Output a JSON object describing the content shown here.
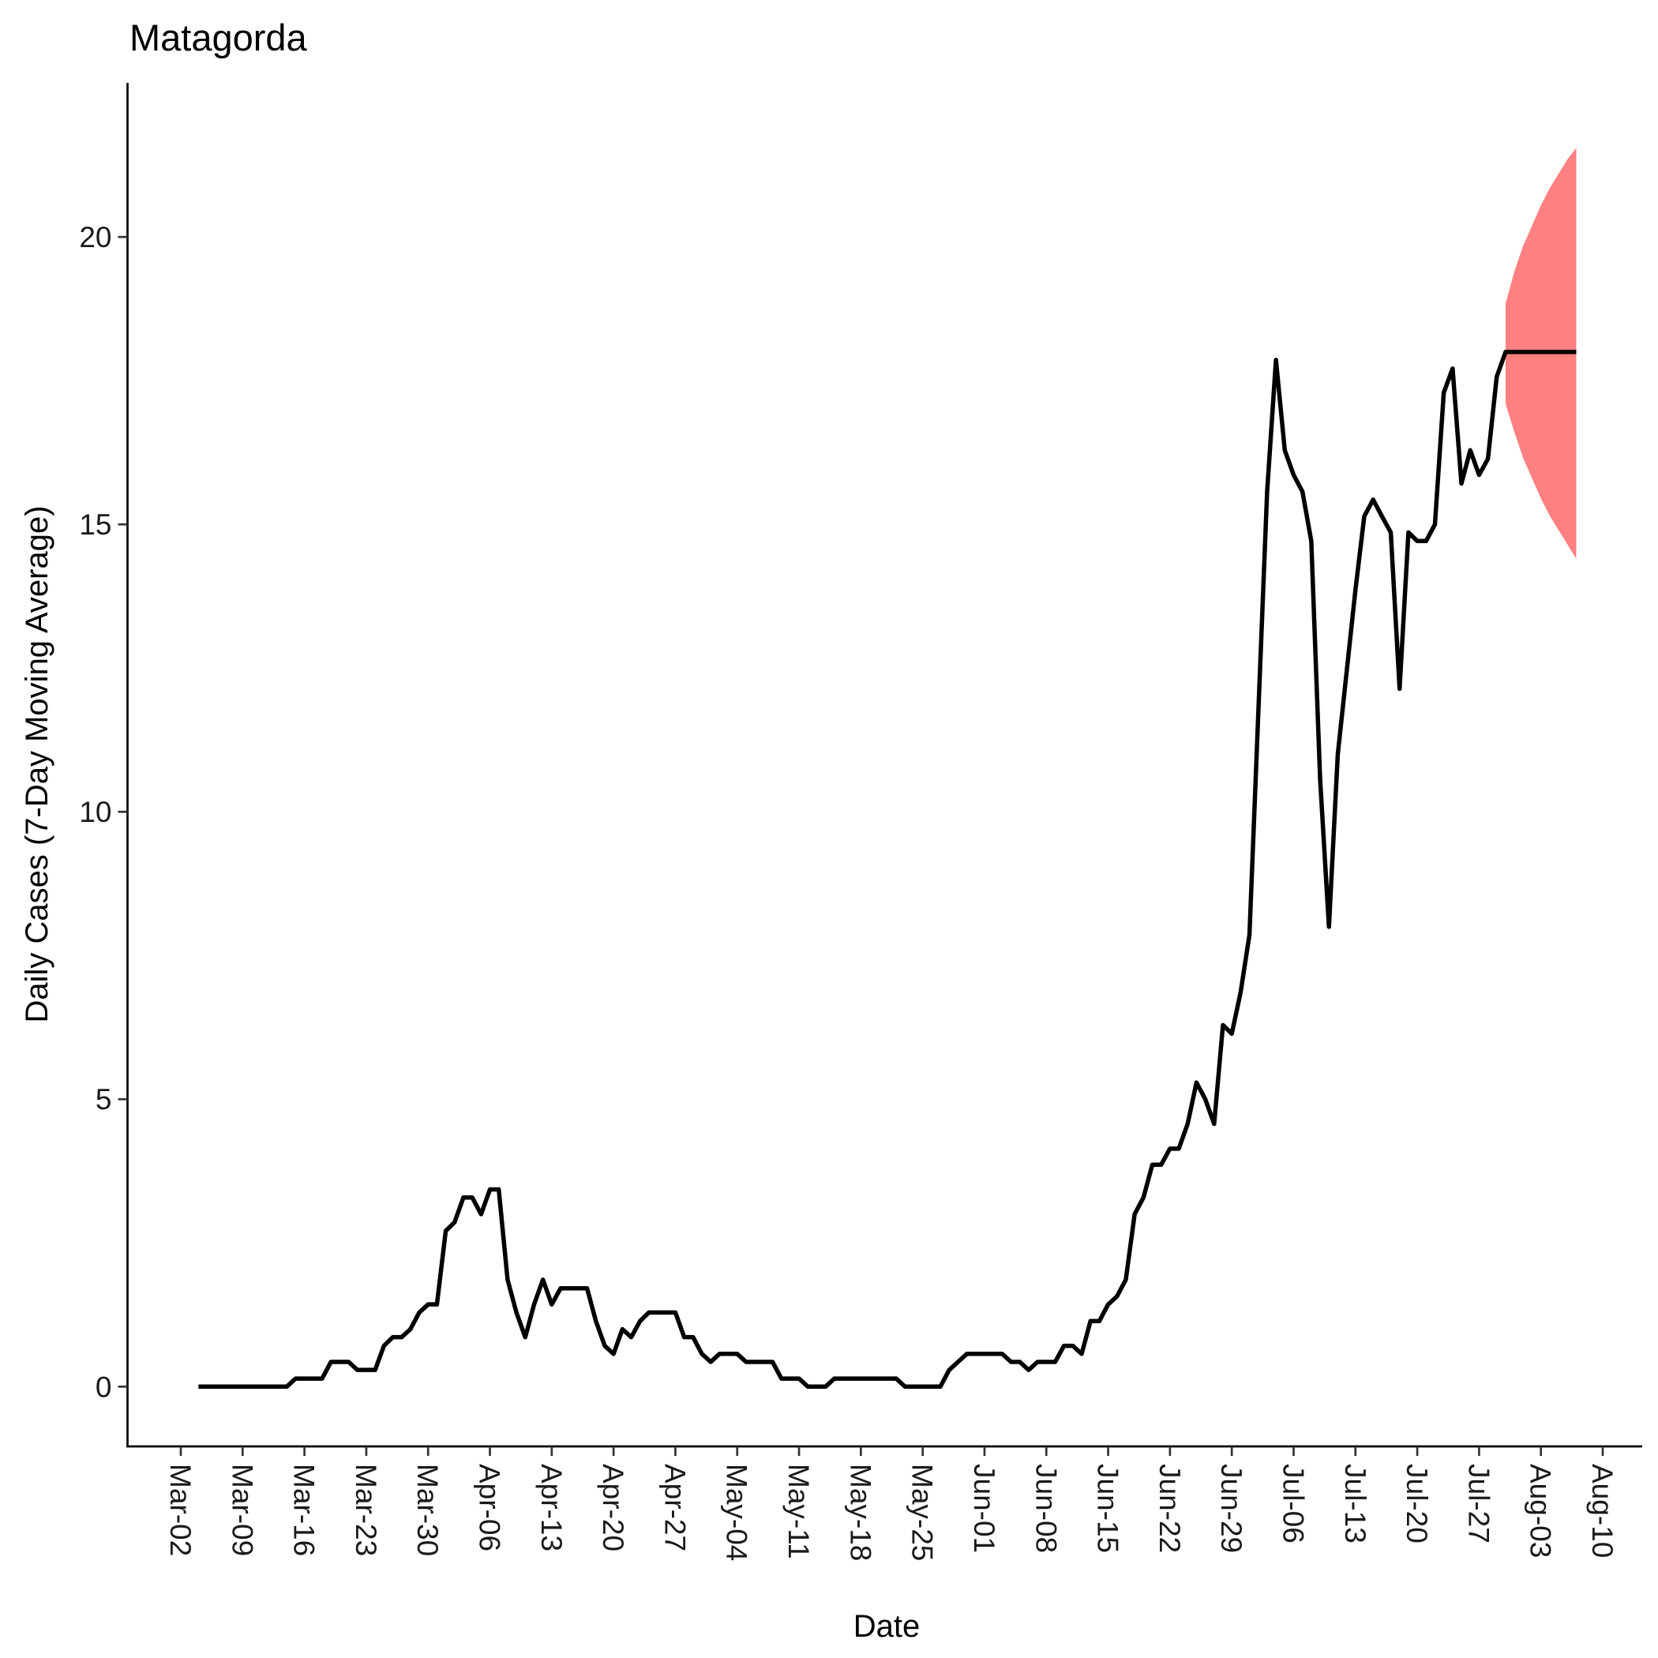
{
  "chart_data": {
    "type": "line",
    "title": "Matagorda",
    "x_label": "Date",
    "y_label": "Daily Cases (7-Day Moving Average)",
    "categories": [
      "Mar-02",
      null,
      null,
      null,
      null,
      null,
      null,
      "Mar-09",
      null,
      null,
      null,
      null,
      null,
      null,
      "Mar-16",
      null,
      null,
      null,
      null,
      null,
      null,
      "Mar-23",
      null,
      null,
      null,
      null,
      null,
      null,
      "Mar-30",
      null,
      null,
      null,
      null,
      null,
      null,
      "Apr-06",
      null,
      null,
      null,
      null,
      null,
      null,
      "Apr-13",
      null,
      null,
      null,
      null,
      null,
      null,
      "Apr-20",
      null,
      null,
      null,
      null,
      null,
      null,
      "Apr-27",
      null,
      null,
      null,
      null,
      null,
      null,
      "May-04",
      null,
      null,
      null,
      null,
      null,
      null,
      "May-11",
      null,
      null,
      null,
      null,
      null,
      null,
      "May-18",
      null,
      null,
      null,
      null,
      null,
      null,
      "May-25",
      null,
      null,
      null,
      null,
      null,
      null,
      "Jun-01",
      null,
      null,
      null,
      null,
      null,
      null,
      "Jun-08",
      null,
      null,
      null,
      null,
      null,
      null,
      "Jun-15",
      null,
      null,
      null,
      null,
      null,
      null,
      "Jun-22",
      null,
      null,
      null,
      null,
      null,
      null,
      "Jun-29",
      null,
      null,
      null,
      null,
      null,
      null,
      "Jul-06",
      null,
      null,
      null,
      null,
      null,
      null,
      "Jul-13",
      null,
      null,
      null,
      null,
      null,
      null,
      "Jul-20",
      null,
      null,
      null,
      null,
      null,
      null,
      "Jul-27",
      null,
      null,
      null,
      null,
      null,
      null,
      "Aug-03",
      null,
      null,
      null,
      null,
      null,
      null,
      "Aug-10"
    ],
    "series": [
      {
        "color": "#000000",
        "values": [
          null,
          null,
          0,
          0,
          0,
          0,
          0,
          0,
          0,
          0,
          0,
          0,
          0,
          0.14,
          0.14,
          0.14,
          0.14,
          0.43,
          0.43,
          0.43,
          0.29,
          0.29,
          0.29,
          0.71,
          0.86,
          0.86,
          1.0,
          1.29,
          1.43,
          1.43,
          2.71,
          2.86,
          3.29,
          3.29,
          3.0,
          3.43,
          3.43,
          1.86,
          1.29,
          0.86,
          1.43,
          1.86,
          1.43,
          1.71,
          1.71,
          1.71,
          1.71,
          1.14,
          0.71,
          0.57,
          1.0,
          0.86,
          1.14,
          1.29,
          1.29,
          1.29,
          1.29,
          0.86,
          0.86,
          0.57,
          0.43,
          0.57,
          0.57,
          0.57,
          0.43,
          0.43,
          0.43,
          0.43,
          0.14,
          0.14,
          0.14,
          0,
          0,
          0,
          0.14,
          0.14,
          0.14,
          0.14,
          0.14,
          0.14,
          0.14,
          0.14,
          0,
          0,
          0,
          0,
          0,
          0.29,
          0.43,
          0.57,
          0.57,
          0.57,
          0.57,
          0.57,
          0.43,
          0.43,
          0.29,
          0.43,
          0.43,
          0.43,
          0.71,
          0.71,
          0.57,
          1.14,
          1.14,
          1.43,
          1.57,
          1.86,
          3.0,
          3.29,
          3.86,
          3.86,
          4.14,
          4.14,
          4.57,
          5.29,
          5.0,
          4.57,
          6.29,
          6.14,
          6.86,
          7.86,
          11.71,
          15.57,
          17.86,
          16.29,
          15.86,
          15.57,
          14.71,
          10.57,
          8.0,
          11.0,
          12.43,
          13.86,
          15.14,
          15.43,
          15.14,
          14.86,
          12.14,
          14.86,
          14.71,
          14.71,
          15.0,
          17.29,
          17.71,
          15.71,
          16.29,
          15.86,
          16.14,
          17.57,
          18.0,
          18,
          18,
          18,
          18,
          18,
          18,
          18,
          18,
          null,
          null,
          null
        ]
      }
    ],
    "band": {
      "color": "#ff8080",
      "lower": [
        null,
        null,
        null,
        null,
        null,
        null,
        null,
        null,
        null,
        null,
        null,
        null,
        null,
        null,
        null,
        null,
        null,
        null,
        null,
        null,
        null,
        null,
        null,
        null,
        null,
        null,
        null,
        null,
        null,
        null,
        null,
        null,
        null,
        null,
        null,
        null,
        null,
        null,
        null,
        null,
        null,
        null,
        null,
        null,
        null,
        null,
        null,
        null,
        null,
        null,
        null,
        null,
        null,
        null,
        null,
        null,
        null,
        null,
        null,
        null,
        null,
        null,
        null,
        null,
        null,
        null,
        null,
        null,
        null,
        null,
        null,
        null,
        null,
        null,
        null,
        null,
        null,
        null,
        null,
        null,
        null,
        null,
        null,
        null,
        null,
        null,
        null,
        null,
        null,
        null,
        null,
        null,
        null,
        null,
        null,
        null,
        null,
        null,
        null,
        null,
        null,
        null,
        null,
        null,
        null,
        null,
        null,
        null,
        null,
        null,
        null,
        null,
        null,
        null,
        null,
        null,
        null,
        null,
        null,
        null,
        null,
        null,
        null,
        null,
        null,
        null,
        null,
        null,
        null,
        null,
        null,
        null,
        null,
        null,
        null,
        null,
        null,
        null,
        null,
        null,
        null,
        null,
        null,
        null,
        null,
        null,
        null,
        null,
        null,
        null,
        17.1,
        16.6,
        16.15,
        15.8,
        15.45,
        15.15,
        14.9,
        14.65,
        14.4,
        null,
        null,
        null
      ],
      "upper": [
        null,
        null,
        null,
        null,
        null,
        null,
        null,
        null,
        null,
        null,
        null,
        null,
        null,
        null,
        null,
        null,
        null,
        null,
        null,
        null,
        null,
        null,
        null,
        null,
        null,
        null,
        null,
        null,
        null,
        null,
        null,
        null,
        null,
        null,
        null,
        null,
        null,
        null,
        null,
        null,
        null,
        null,
        null,
        null,
        null,
        null,
        null,
        null,
        null,
        null,
        null,
        null,
        null,
        null,
        null,
        null,
        null,
        null,
        null,
        null,
        null,
        null,
        null,
        null,
        null,
        null,
        null,
        null,
        null,
        null,
        null,
        null,
        null,
        null,
        null,
        null,
        null,
        null,
        null,
        null,
        null,
        null,
        null,
        null,
        null,
        null,
        null,
        null,
        null,
        null,
        null,
        null,
        null,
        null,
        null,
        null,
        null,
        null,
        null,
        null,
        null,
        null,
        null,
        null,
        null,
        null,
        null,
        null,
        null,
        null,
        null,
        null,
        null,
        null,
        null,
        null,
        null,
        null,
        null,
        null,
        null,
        null,
        null,
        null,
        null,
        null,
        null,
        null,
        null,
        null,
        null,
        null,
        null,
        null,
        null,
        null,
        null,
        null,
        null,
        null,
        null,
        null,
        null,
        null,
        null,
        null,
        null,
        null,
        null,
        null,
        18.84,
        19.4,
        19.85,
        20.2,
        20.55,
        20.85,
        21.1,
        21.35,
        21.55,
        null,
        null,
        null
      ]
    },
    "ylim": [
      -1.04,
      22.68
    ],
    "yticks": [
      0,
      5,
      10,
      15,
      20
    ],
    "grid": false
  }
}
